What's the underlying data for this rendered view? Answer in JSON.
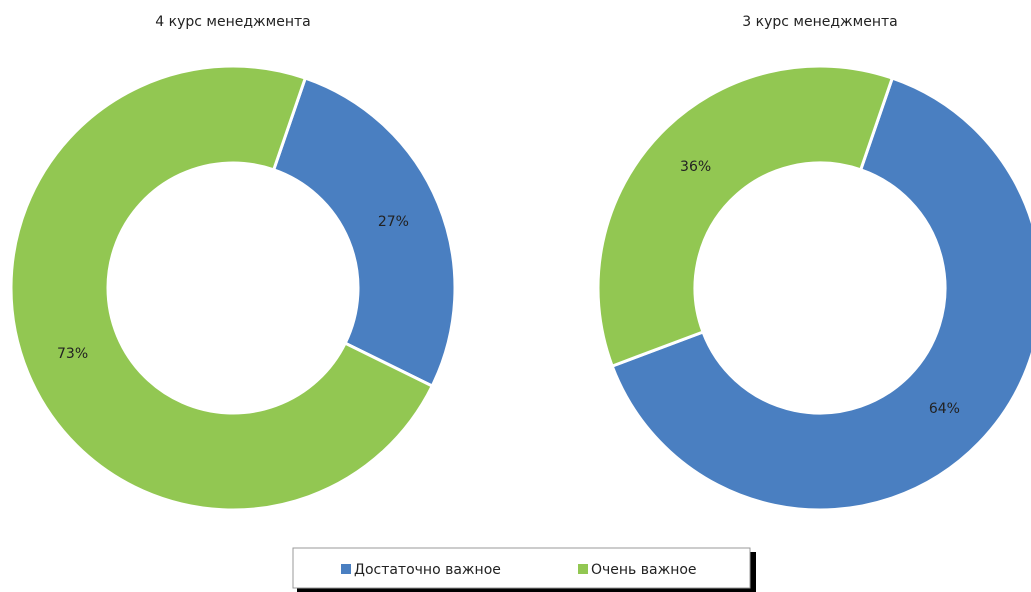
{
  "chart_data": [
    {
      "type": "donut",
      "title": "4 курс менеджмента",
      "categories": [
        "Достаточно важное",
        "Очень важное"
      ],
      "values": [
        27,
        73
      ],
      "value_labels": [
        "27%",
        "73%"
      ],
      "colors": [
        "#4a7fc1",
        "#92c752"
      ]
    },
    {
      "type": "donut",
      "title": "3 курс менеджмента",
      "categories": [
        "Достаточно важное",
        "Очень важное"
      ],
      "values": [
        64,
        36
      ],
      "value_labels": [
        "64%",
        "36%"
      ],
      "colors": [
        "#4a7fc1",
        "#92c752"
      ]
    }
  ]
}
